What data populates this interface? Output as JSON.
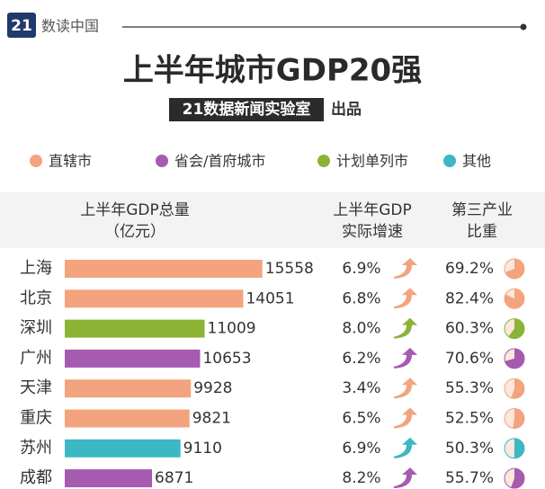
{
  "chart_data": {
    "type": "bar",
    "badge": "21",
    "brand": "数读中国",
    "title": "上半年城市GDP20强",
    "subtitle_box": "21数据新闻实验室",
    "subtitle_suffix": "出品",
    "legend": [
      {
        "name": "直辖市",
        "color": "#f3a47e"
      },
      {
        "name": "省会/首府城市",
        "color": "#a45bb0"
      },
      {
        "name": "计划单列市",
        "color": "#8bb436"
      },
      {
        "name": "其他",
        "color": "#3bb8c4"
      }
    ],
    "gdp_header": [
      "上半年GDP总量",
      "（亿元）"
    ],
    "growth_header": [
      "上半年GDP",
      "实际增速"
    ],
    "share_header": [
      "第三产业",
      "比重"
    ],
    "categories": [
      "上海",
      "北京",
      "深圳",
      "广州",
      "天津",
      "重庆",
      "苏州",
      "成都"
    ],
    "colors": [
      "#f3a47e",
      "#f3a47e",
      "#8bb436",
      "#a45bb0",
      "#f3a47e",
      "#f3a47e",
      "#3bb8c4",
      "#a45bb0"
    ],
    "values": [
      15558,
      14051,
      11009,
      10653,
      9928,
      9821,
      9110,
      6871
    ],
    "xlim": [
      0,
      16000
    ],
    "growth": {
      "values": [
        6.9,
        6.8,
        8.0,
        6.2,
        3.4,
        6.5,
        6.9,
        8.2
      ],
      "value_labels": [
        "6.9%",
        "6.8%",
        "8.0%",
        "6.2%",
        "3.4%",
        "6.5%",
        "6.9%",
        "8.2%"
      ]
    },
    "share": {
      "values": [
        69.2,
        82.4,
        60.3,
        70.6,
        55.3,
        52.5,
        50.3,
        55.7
      ],
      "value_labels": [
        "69.2%",
        "82.4%",
        "60.3%",
        "70.6%",
        "55.3%",
        "52.5%",
        "50.3%",
        "55.7%"
      ]
    }
  }
}
